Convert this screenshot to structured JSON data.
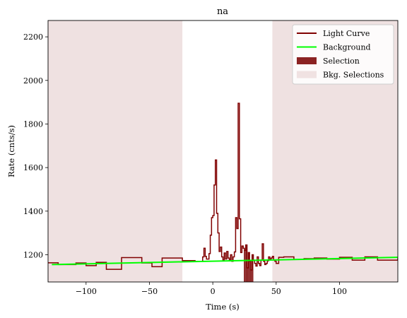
{
  "chart_data": {
    "type": "line",
    "title": "na",
    "xlabel": "Time (s)",
    "ylabel": "Rate (cnts/s)",
    "xlim": [
      -130,
      146
    ],
    "ylim": [
      1075,
      2275
    ],
    "xticks": [
      -100,
      -50,
      0,
      50,
      100
    ],
    "xtick_labels": [
      "−100",
      "−50",
      "0",
      "50",
      "100"
    ],
    "yticks": [
      1200,
      1400,
      1600,
      1800,
      2000,
      2200
    ],
    "ytick_labels": [
      "1200",
      "1400",
      "1600",
      "1800",
      "2000",
      "2200"
    ],
    "grid": false,
    "legend": {
      "placement": "top-right",
      "entries": [
        {
          "label": "Light Curve",
          "style": "line",
          "color": "#800000"
        },
        {
          "label": "Background",
          "style": "line",
          "color": "#00ff00"
        },
        {
          "label": "Selection",
          "style": "patch",
          "color": "#8b2323"
        },
        {
          "label": "Bkg. Selections",
          "style": "patch",
          "color": "#f0e2e2"
        }
      ]
    },
    "colors": {
      "light_curve": "#800000",
      "background": "#00ff00",
      "selection": "#8b2323",
      "bkg_selection": "#efe1e1"
    },
    "bkg_selections": [
      [
        -130,
        -24
      ],
      [
        47,
        146
      ]
    ],
    "selection": [
      24.5,
      32
    ],
    "background": {
      "x": [
        -127,
        146
      ],
      "y": [
        1155,
        1188
      ]
    },
    "light_curve": {
      "edges": [
        -130,
        -122,
        -108,
        -100,
        -92,
        -84,
        -72,
        -56,
        -48,
        -40,
        -24,
        -14,
        -8,
        -7,
        -6,
        -5,
        -3,
        -2,
        -1,
        0,
        1,
        2,
        3,
        4,
        5,
        6,
        7,
        8,
        9,
        10,
        11,
        12,
        13,
        14,
        15,
        16,
        17,
        18,
        19,
        20,
        21,
        22,
        23,
        24,
        25,
        26,
        27,
        28,
        29,
        30,
        31,
        32,
        33,
        34,
        35,
        36,
        37,
        38,
        39,
        40,
        41,
        42,
        43,
        44,
        45,
        46,
        47,
        48,
        49,
        50,
        52,
        56,
        64,
        72,
        80,
        90,
        100,
        110,
        120,
        130,
        146
      ],
      "values": [
        1163,
        1155,
        1162,
        1150,
        1165,
        1133,
        1187,
        1162,
        1145,
        1185,
        1173,
        1170,
        1190,
        1230,
        1192,
        1180,
        1205,
        1290,
        1370,
        1380,
        1520,
        1635,
        1390,
        1300,
        1215,
        1235,
        1190,
        1175,
        1208,
        1180,
        1215,
        1185,
        1175,
        1200,
        1170,
        1190,
        1213,
        1370,
        1320,
        1895,
        1365,
        1210,
        1240,
        1230,
        1220,
        1245,
        1140,
        1210,
        1170,
        1130,
        1200,
        1175,
        1160,
        1148,
        1190,
        1160,
        1150,
        1175,
        1250,
        1170,
        1155,
        1160,
        1172,
        1190,
        1180,
        1185,
        1192,
        1175,
        1170,
        1160,
        1188,
        1190,
        1178,
        1182,
        1185,
        1180,
        1188,
        1175,
        1190,
        1175,
        1185
      ]
    }
  }
}
